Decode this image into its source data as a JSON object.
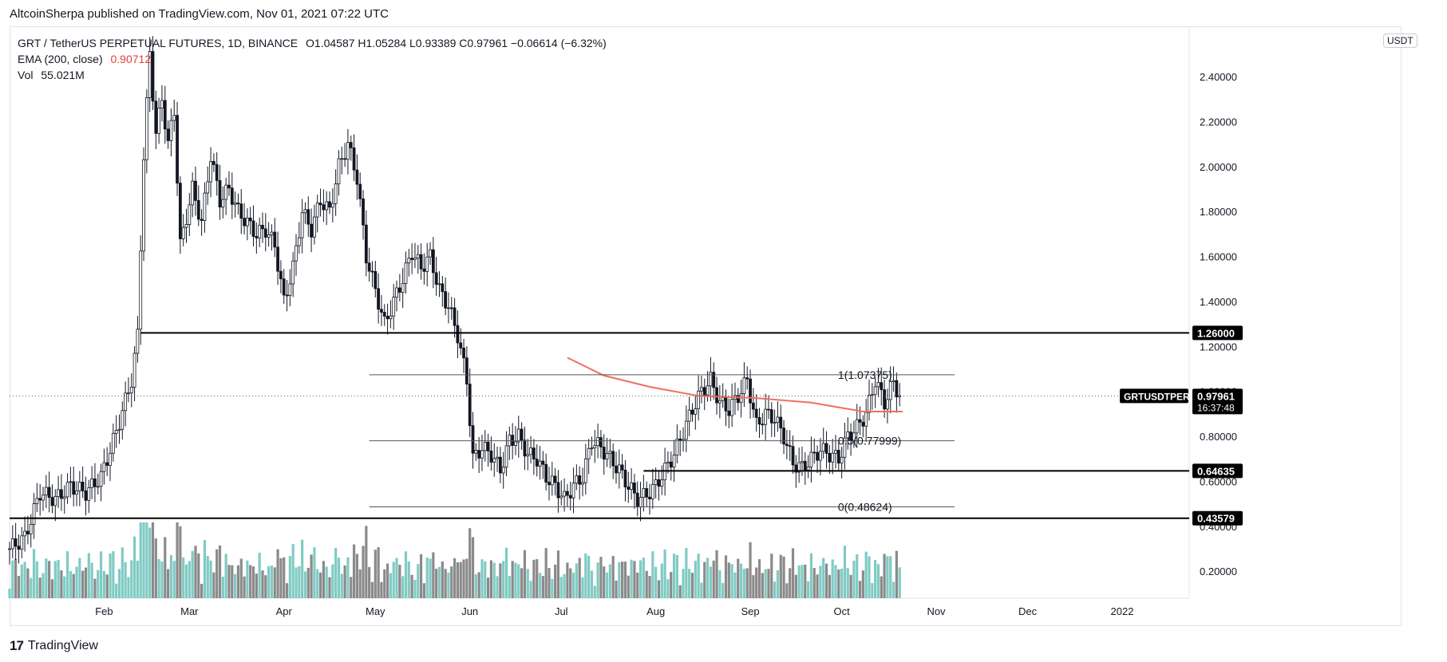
{
  "header": {
    "publisher": "AltcoinSherpa published on TradingView.com, Nov 01, 2021 07:22 UTC"
  },
  "legend": {
    "symbol": "GRT / TetherUS PERPETUAL FUTURES, 1D, BINANCE",
    "ohlc": "O1.04587  H1.05284  L0.93389  C0.97961  −0.06614 (−6.32%)",
    "ema_label": "EMA (200, close)",
    "ema_value": "0.90712",
    "vol_label": "Vol",
    "vol_value": "55.021M"
  },
  "currency_badge": "USDT",
  "footer": {
    "logo": "17",
    "brand": "TradingView"
  },
  "colors": {
    "bull_vol": "#80cbc4",
    "bear_vol": "#8a8a8a",
    "ema": "#ef6f63",
    "candle": "#131722"
  },
  "chart_data": {
    "type": "candlestick",
    "x_axis_labels": [
      "Feb",
      "Mar",
      "Apr",
      "May",
      "Jun",
      "Jul",
      "Aug",
      "Sep",
      "Oct",
      "Nov",
      "Dec",
      "2022"
    ],
    "x_axis_label_days": [
      31,
      59,
      90,
      120,
      151,
      181,
      212,
      243,
      273,
      304,
      334,
      365
    ],
    "y_ticks": [
      2.4,
      2.2,
      2.0,
      1.8,
      1.6,
      1.4,
      1.2,
      1.0,
      0.8,
      0.6,
      0.4,
      0.2
    ],
    "y_tick_labels": [
      "2.40000",
      "2.20000",
      "2.00000",
      "1.80000",
      "1.60000",
      "1.40000",
      "1.20000",
      "1.00000",
      "0.80000",
      "0.60000",
      "0.40000",
      "0.20000"
    ],
    "ylim": [
      0.08,
      2.62
    ],
    "xlim_days": [
      0,
      387
    ],
    "series_close": [
      {
        "day": 0,
        "v": 0.3
      },
      {
        "day": 5,
        "v": 0.35
      },
      {
        "day": 10,
        "v": 0.55
      },
      {
        "day": 15,
        "v": 0.52
      },
      {
        "day": 20,
        "v": 0.58
      },
      {
        "day": 25,
        "v": 0.55
      },
      {
        "day": 30,
        "v": 0.62
      },
      {
        "day": 35,
        "v": 0.82
      },
      {
        "day": 40,
        "v": 1.05
      },
      {
        "day": 42,
        "v": 1.25
      },
      {
        "day": 44,
        "v": 2.05
      },
      {
        "day": 46,
        "v": 2.5
      },
      {
        "day": 48,
        "v": 2.15
      },
      {
        "day": 50,
        "v": 2.3
      },
      {
        "day": 52,
        "v": 2.1
      },
      {
        "day": 54,
        "v": 2.25
      },
      {
        "day": 56,
        "v": 1.65
      },
      {
        "day": 60,
        "v": 1.9
      },
      {
        "day": 63,
        "v": 1.75
      },
      {
        "day": 66,
        "v": 2.05
      },
      {
        "day": 69,
        "v": 1.85
      },
      {
        "day": 72,
        "v": 1.9
      },
      {
        "day": 75,
        "v": 1.8
      },
      {
        "day": 78,
        "v": 1.75
      },
      {
        "day": 81,
        "v": 1.7
      },
      {
        "day": 84,
        "v": 1.72
      },
      {
        "day": 87,
        "v": 1.65
      },
      {
        "day": 90,
        "v": 1.4
      },
      {
        "day": 93,
        "v": 1.55
      },
      {
        "day": 96,
        "v": 1.8
      },
      {
        "day": 99,
        "v": 1.72
      },
      {
        "day": 102,
        "v": 1.85
      },
      {
        "day": 105,
        "v": 1.8
      },
      {
        "day": 108,
        "v": 2.0
      },
      {
        "day": 111,
        "v": 2.1
      },
      {
        "day": 114,
        "v": 1.95
      },
      {
        "day": 117,
        "v": 1.6
      },
      {
        "day": 120,
        "v": 1.45
      },
      {
        "day": 123,
        "v": 1.3
      },
      {
        "day": 126,
        "v": 1.4
      },
      {
        "day": 129,
        "v": 1.5
      },
      {
        "day": 132,
        "v": 1.62
      },
      {
        "day": 135,
        "v": 1.55
      },
      {
        "day": 138,
        "v": 1.6
      },
      {
        "day": 141,
        "v": 1.45
      },
      {
        "day": 144,
        "v": 1.38
      },
      {
        "day": 147,
        "v": 1.25
      },
      {
        "day": 150,
        "v": 1.05
      },
      {
        "day": 152,
        "v": 0.7
      },
      {
        "day": 155,
        "v": 0.75
      },
      {
        "day": 158,
        "v": 0.72
      },
      {
        "day": 161,
        "v": 0.65
      },
      {
        "day": 164,
        "v": 0.78
      },
      {
        "day": 167,
        "v": 0.8
      },
      {
        "day": 170,
        "v": 0.72
      },
      {
        "day": 173,
        "v": 0.7
      },
      {
        "day": 176,
        "v": 0.62
      },
      {
        "day": 179,
        "v": 0.58
      },
      {
        "day": 182,
        "v": 0.52
      },
      {
        "day": 185,
        "v": 0.58
      },
      {
        "day": 188,
        "v": 0.62
      },
      {
        "day": 191,
        "v": 0.78
      },
      {
        "day": 194,
        "v": 0.75
      },
      {
        "day": 197,
        "v": 0.7
      },
      {
        "day": 200,
        "v": 0.65
      },
      {
        "day": 203,
        "v": 0.58
      },
      {
        "day": 206,
        "v": 0.52
      },
      {
        "day": 209,
        "v": 0.54
      },
      {
        "day": 212,
        "v": 0.58
      },
      {
        "day": 215,
        "v": 0.65
      },
      {
        "day": 218,
        "v": 0.72
      },
      {
        "day": 221,
        "v": 0.82
      },
      {
        "day": 224,
        "v": 0.92
      },
      {
        "day": 227,
        "v": 1.0
      },
      {
        "day": 230,
        "v": 1.05
      },
      {
        "day": 233,
        "v": 0.95
      },
      {
        "day": 236,
        "v": 0.92
      },
      {
        "day": 239,
        "v": 0.98
      },
      {
        "day": 242,
        "v": 1.05
      },
      {
        "day": 245,
        "v": 0.85
      },
      {
        "day": 248,
        "v": 0.9
      },
      {
        "day": 251,
        "v": 0.88
      },
      {
        "day": 254,
        "v": 0.8
      },
      {
        "day": 257,
        "v": 0.68
      },
      {
        "day": 260,
        "v": 0.66
      },
      {
        "day": 263,
        "v": 0.7
      },
      {
        "day": 266,
        "v": 0.74
      },
      {
        "day": 269,
        "v": 0.72
      },
      {
        "day": 272,
        "v": 0.7
      },
      {
        "day": 275,
        "v": 0.8
      },
      {
        "day": 278,
        "v": 0.84
      },
      {
        "day": 281,
        "v": 0.9
      },
      {
        "day": 284,
        "v": 1.05
      },
      {
        "day": 287,
        "v": 0.95
      },
      {
        "day": 290,
        "v": 1.04
      },
      {
        "day": 292,
        "v": 0.98
      }
    ],
    "ema_200": [
      {
        "day": 183,
        "v": 1.15
      },
      {
        "day": 195,
        "v": 1.07
      },
      {
        "day": 210,
        "v": 1.02
      },
      {
        "day": 226,
        "v": 0.98
      },
      {
        "day": 245,
        "v": 0.97
      },
      {
        "day": 263,
        "v": 0.95
      },
      {
        "day": 280,
        "v": 0.91
      },
      {
        "day": 293,
        "v": 0.91
      }
    ],
    "horizontal_levels": [
      {
        "value": 1.26,
        "label": "1.26000",
        "style": "bold",
        "from_day": 43
      },
      {
        "value": 0.64635,
        "label": "0.64635",
        "style": "bold",
        "from_day": 208
      },
      {
        "value": 0.43579,
        "label": "0.43579",
        "style": "bold",
        "from_day": 0
      }
    ],
    "fib_levels": [
      {
        "value": 1.07375,
        "label": "1(1.07375)"
      },
      {
        "value": 0.77999,
        "label": "0.5(0.77999)"
      },
      {
        "value": 0.48624,
        "label": "0(0.48624)"
      }
    ],
    "fib_from_day": 118,
    "fib_to_day": 310,
    "current_price": {
      "symbol": "GRTUSDTPERP",
      "value": "0.97961",
      "countdown": "16:37:48",
      "v": 0.97961
    }
  }
}
